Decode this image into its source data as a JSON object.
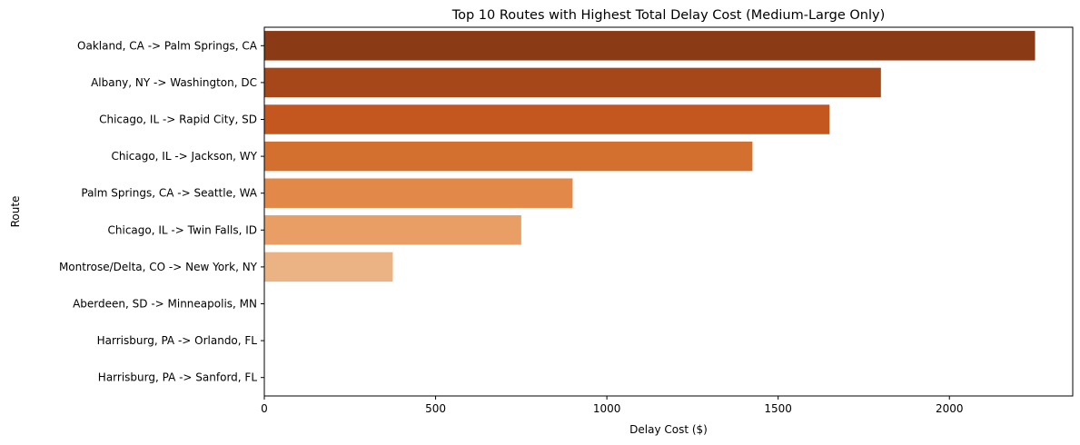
{
  "chart_data": {
    "type": "bar",
    "orientation": "horizontal",
    "title": "Top 10 Routes with Highest Total Delay Cost (Medium-Large Only)",
    "xlabel": "Delay Cost ($)",
    "ylabel": "Route",
    "xlim": [
      0,
      2360
    ],
    "xticks": [
      0,
      500,
      1000,
      1500,
      2000
    ],
    "grid": false,
    "categories": [
      "Oakland, CA -> Palm Springs, CA",
      "Albany, NY -> Washington, DC",
      "Chicago, IL -> Rapid City, SD",
      "Chicago, IL -> Jackson, WY",
      "Palm Springs, CA -> Seattle, WA",
      "Chicago, IL -> Twin Falls, ID",
      "Montrose/Delta, CO -> New York, NY",
      "Aberdeen, SD -> Minneapolis, MN",
      "Harrisburg, PA -> Orlando, FL",
      "Harrisburg, PA -> Sanford, FL"
    ],
    "values": [
      2250,
      1800,
      1650,
      1425,
      900,
      750,
      375,
      0,
      0,
      0
    ],
    "colors": [
      "#8B3A16",
      "#A6471A",
      "#C4571F",
      "#D4702F",
      "#E28848",
      "#E89E65",
      "#EBB283",
      "#F0C7A2",
      "#F3D4B6",
      "#F6E0CA"
    ]
  }
}
